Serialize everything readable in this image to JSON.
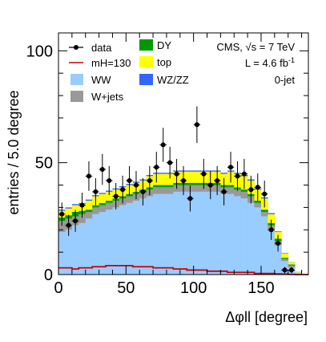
{
  "chart_data": {
    "type": "bar",
    "xlabel": "Δφll [degree]",
    "ylabel": "entries / 5.0 degree",
    "xlim": [
      0,
      185
    ],
    "ylim": [
      0,
      108
    ],
    "x_ticks": [
      "0",
      "50",
      "100",
      "150"
    ],
    "y_ticks": [
      "0",
      "50",
      "100"
    ],
    "bin_width": 5,
    "bin_low_edges": [
      0,
      5,
      10,
      15,
      20,
      25,
      30,
      35,
      40,
      45,
      50,
      55,
      60,
      65,
      70,
      75,
      80,
      85,
      90,
      95,
      100,
      105,
      110,
      115,
      120,
      125,
      130,
      135,
      140,
      145,
      150,
      155,
      160,
      165,
      170,
      175,
      180
    ],
    "stack_order": [
      "WW",
      "W+jets",
      "DY",
      "top",
      "WZ/ZZ"
    ],
    "series": [
      {
        "name": "WW",
        "color": "#99ccff",
        "values": [
          19,
          20,
          22,
          23,
          25,
          27,
          28,
          29,
          30,
          31,
          32,
          33,
          34,
          35,
          36,
          36,
          36,
          37,
          37,
          37,
          37,
          37,
          37,
          37,
          36,
          36,
          35,
          34,
          32,
          30,
          26,
          20,
          13,
          6,
          3,
          1,
          0
        ]
      },
      {
        "name": "W+jets",
        "color": "#999999",
        "values": [
          5,
          5,
          4,
          4,
          3,
          3,
          3,
          3,
          3,
          3,
          3,
          3,
          3,
          3,
          3,
          3,
          3,
          3,
          3,
          3,
          3,
          3,
          3,
          3,
          3,
          3,
          3,
          3,
          3,
          2,
          2,
          2,
          2,
          1,
          1,
          0,
          0
        ]
      },
      {
        "name": "DY",
        "color": "#009900",
        "values": [
          1.5,
          1.5,
          2,
          1.5,
          1,
          1,
          1,
          1,
          1,
          1,
          1,
          1,
          1,
          1,
          1,
          1,
          1,
          1,
          1,
          1,
          1,
          1,
          1,
          1,
          1,
          1,
          1,
          1,
          1,
          1,
          1,
          1,
          1,
          0.5,
          0.5,
          0,
          0
        ]
      },
      {
        "name": "top",
        "color": "#ffff00",
        "values": [
          3,
          3,
          3,
          3,
          4,
          4,
          4,
          4,
          4,
          4,
          4,
          4,
          4,
          5,
          5,
          5,
          5,
          5,
          5,
          5,
          5,
          5,
          5,
          5,
          5,
          6,
          6,
          6,
          6,
          5,
          5,
          4,
          3,
          2,
          1,
          0.5,
          0
        ]
      },
      {
        "name": "WZ/ZZ",
        "color": "#3366ff",
        "values": [
          0.5,
          0.5,
          0.5,
          0.5,
          0.5,
          0.5,
          0.5,
          0.5,
          0.5,
          0.5,
          0.5,
          0.5,
          0.5,
          0.5,
          0.5,
          0.5,
          0.5,
          0.5,
          0.5,
          0.5,
          0.5,
          0.5,
          0.5,
          0.5,
          0.5,
          0.5,
          0.5,
          0.5,
          0.5,
          0.5,
          0.5,
          0.5,
          0.3,
          0.2,
          0.1,
          0,
          0
        ]
      }
    ],
    "signal": {
      "name": "mH=130",
      "color": "#cc0000",
      "values": [
        3,
        3,
        2.5,
        3,
        3,
        3.5,
        3.5,
        4,
        4,
        4,
        4,
        3.5,
        3.5,
        3.5,
        3,
        3,
        3,
        2.5,
        2.5,
        2,
        2,
        2,
        1.5,
        1.5,
        1.5,
        1,
        1,
        1,
        1,
        0.5,
        0.5,
        0.5,
        0.3,
        0.2,
        0.1,
        0,
        0
      ]
    },
    "data": {
      "name": "data",
      "x": [
        2.5,
        7.5,
        12.5,
        17.5,
        22.5,
        27.5,
        32.5,
        37.5,
        42.5,
        47.5,
        52.5,
        57.5,
        62.5,
        67.5,
        72.5,
        77.5,
        82.5,
        87.5,
        92.5,
        97.5,
        102.5,
        107.5,
        112.5,
        117.5,
        122.5,
        127.5,
        132.5,
        137.5,
        142.5,
        147.5,
        152.5,
        157.5,
        162.5,
        167.5,
        172.5,
        177.5
      ],
      "y": [
        27,
        22,
        24,
        31,
        44,
        37,
        47,
        42,
        35,
        38,
        42,
        40,
        37,
        42,
        48,
        58,
        50,
        45,
        42,
        34,
        67,
        45,
        40,
        42,
        37,
        48,
        44,
        45,
        38,
        39,
        36,
        20,
        14,
        2,
        2,
        0
      ],
      "yerr": [
        5.2,
        4.7,
        4.9,
        5.6,
        6.6,
        6.1,
        6.9,
        6.5,
        5.9,
        6.2,
        6.5,
        6.3,
        6.1,
        6.5,
        6.9,
        7.6,
        7.1,
        6.7,
        6.5,
        5.8,
        8.2,
        6.7,
        6.3,
        6.5,
        6.1,
        6.9,
        6.6,
        6.7,
        6.2,
        6.2,
        6.0,
        4.5,
        3.7,
        1.4,
        1.4,
        0
      ]
    },
    "legend": [
      "data",
      "mH=130",
      "WW",
      "W+jets",
      "DY",
      "top",
      "WZ/ZZ"
    ],
    "legend_placement": "top",
    "grid": false
  },
  "annotations": {
    "experiment": "CMS, √s = 7 TeV",
    "lumi": "L = 4.6 fb",
    "lumi_sup": "-1",
    "category": "0-jet"
  }
}
